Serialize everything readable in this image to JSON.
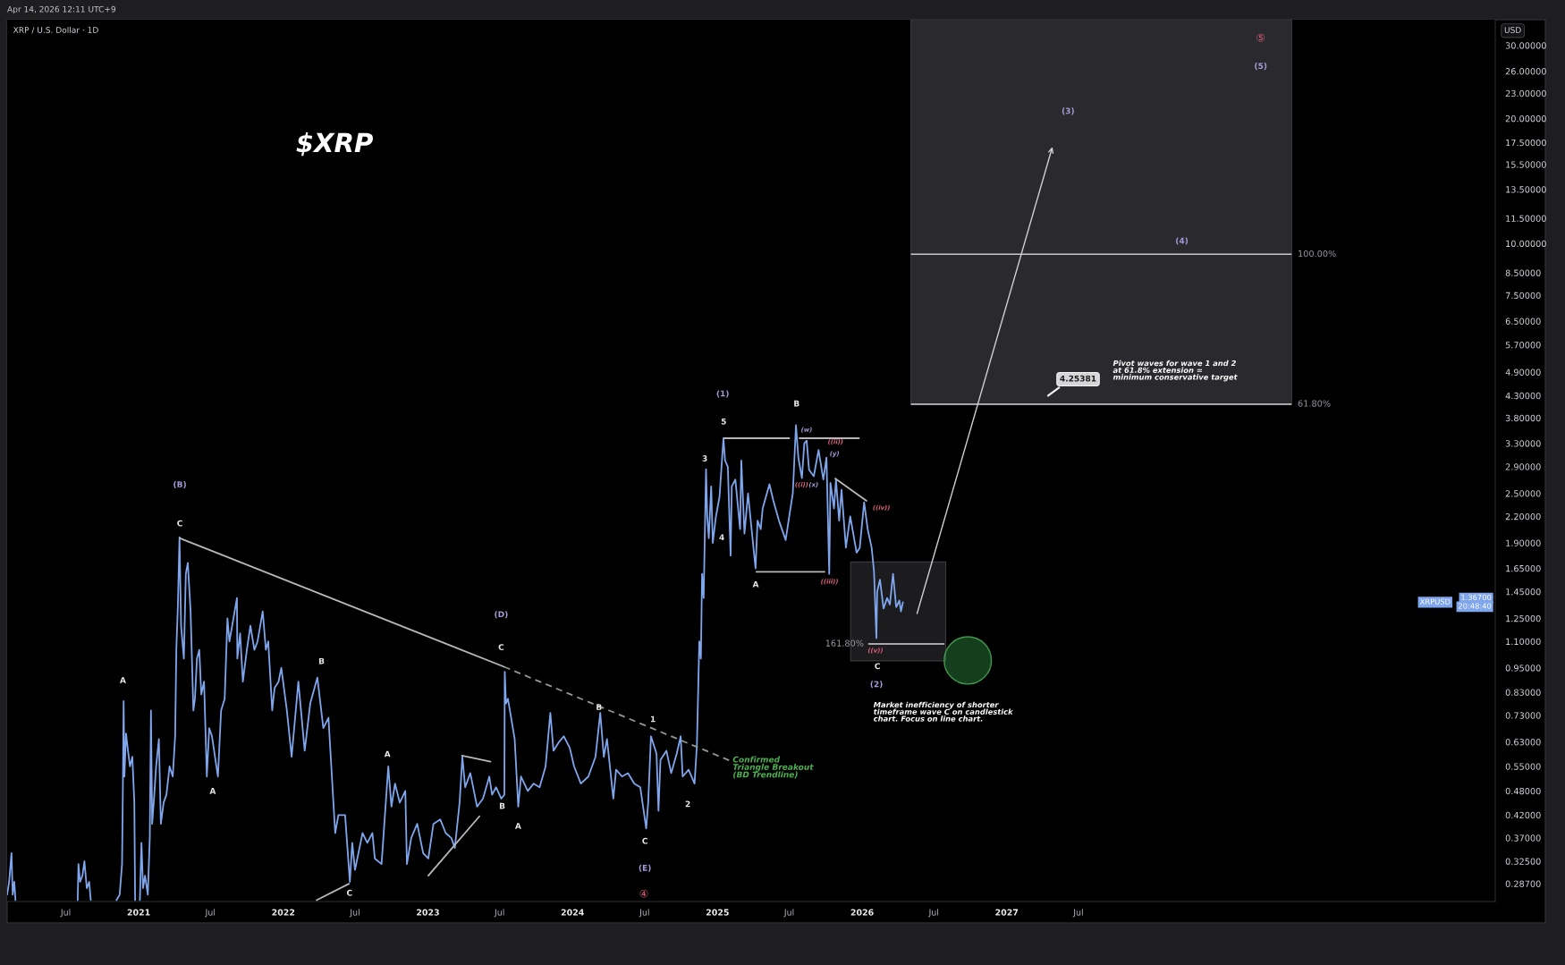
{
  "chart_data": {
    "type": "line",
    "title": "XRP / U.S. Dollar · 1D",
    "subtitle": "$XRP",
    "ylabel": "USD",
    "log": true,
    "xlim": [
      "2020-02-04",
      "2030-05-18"
    ],
    "ylim": [
      0.26,
      34.6
    ],
    "xticks": [
      {
        "value": "2020-07-01",
        "label": "Jul"
      },
      {
        "value": "2021-01-01",
        "label": "2021"
      },
      {
        "value": "2021-07-01",
        "label": "Jul"
      },
      {
        "value": "2022-01-01",
        "label": "2022"
      },
      {
        "value": "2022-07-01",
        "label": "Jul"
      },
      {
        "value": "2023-01-01",
        "label": "2023"
      },
      {
        "value": "2023-07-01",
        "label": "Jul"
      },
      {
        "value": "2024-01-01",
        "label": "2024"
      },
      {
        "value": "2024-07-01",
        "label": "Jul"
      },
      {
        "value": "2025-01-01",
        "label": "2025"
      },
      {
        "value": "2025-07-01",
        "label": "Jul"
      },
      {
        "value": "2026-01-01",
        "label": "2026"
      },
      {
        "value": "2026-07-01",
        "label": "Jul"
      },
      {
        "value": "2027-01-01",
        "label": "2027"
      },
      {
        "value": "2027-07-01",
        "label": "Jul"
      }
    ],
    "yticks": [
      {
        "value": 30,
        "label": "30.00000"
      },
      {
        "value": 26,
        "label": "26.00000"
      },
      {
        "value": 23,
        "label": "23.00000"
      },
      {
        "value": 20,
        "label": "20.00000"
      },
      {
        "value": 17.5,
        "label": "17.50000"
      },
      {
        "value": 15.5,
        "label": "15.50000"
      },
      {
        "value": 13.5,
        "label": "13.50000"
      },
      {
        "value": 11.5,
        "label": "11.50000"
      },
      {
        "value": 10,
        "label": "10.00000"
      },
      {
        "value": 8.5,
        "label": "8.50000"
      },
      {
        "value": 7.5,
        "label": "7.50000"
      },
      {
        "value": 6.5,
        "label": "6.50000"
      },
      {
        "value": 5.7,
        "label": "5.70000"
      },
      {
        "value": 4.9,
        "label": "4.90000"
      },
      {
        "value": 4.3,
        "label": "4.30000"
      },
      {
        "value": 3.8,
        "label": "3.80000"
      },
      {
        "value": 3.3,
        "label": "3.30000"
      },
      {
        "value": 2.9,
        "label": "2.90000"
      },
      {
        "value": 2.5,
        "label": "2.50000"
      },
      {
        "value": 2.2,
        "label": "2.20000"
      },
      {
        "value": 1.9,
        "label": "1.90000"
      },
      {
        "value": 1.65,
        "label": "1.65000"
      },
      {
        "value": 1.45,
        "label": "1.45000"
      },
      {
        "value": 1.25,
        "label": "1.25000"
      },
      {
        "value": 1.1,
        "label": "1.10000"
      },
      {
        "value": 0.95,
        "label": "0.95000"
      },
      {
        "value": 0.83,
        "label": "0.83000"
      },
      {
        "value": 0.73,
        "label": "0.73000"
      },
      {
        "value": 0.63,
        "label": "0.63000"
      },
      {
        "value": 0.55,
        "label": "0.55000"
      },
      {
        "value": 0.48,
        "label": "0.48000"
      },
      {
        "value": 0.42,
        "label": "0.42000"
      },
      {
        "value": 0.37,
        "label": "0.37000"
      },
      {
        "value": 0.325,
        "label": "0.32500"
      },
      {
        "value": 0.287,
        "label": "0.28700"
      }
    ],
    "series": [
      {
        "name": "XRPUSD",
        "color": "#7fa6ec",
        "x": [
          "2020-02-04",
          "2020-02-09",
          "2020-02-15",
          "2020-02-18",
          "2020-02-22",
          "2020-02-25",
          "2020-02-28",
          "2020-07-31",
          "2020-08-02",
          "2020-08-06",
          "2020-08-12",
          "2020-08-17",
          "2020-08-23",
          "2020-08-29",
          "2020-09-02",
          "2020-09-06",
          "2020-11-06",
          "2020-11-14",
          "2020-11-20",
          "2020-11-22",
          "2020-11-24",
          "2020-11-26",
          "2020-11-30",
          "2020-12-05",
          "2020-12-10",
          "2020-12-16",
          "2020-12-21",
          "2020-12-23",
          "2020-12-26",
          "2021-01-04",
          "2021-01-08",
          "2021-01-12",
          "2021-01-17",
          "2021-01-24",
          "2021-01-29",
          "2021-02-01",
          "2021-02-04",
          "2021-02-08",
          "2021-02-14",
          "2021-02-21",
          "2021-02-26",
          "2021-03-05",
          "2021-03-12",
          "2021-03-20",
          "2021-03-28",
          "2021-04-03",
          "2021-04-06",
          "2021-04-10",
          "2021-04-14",
          "2021-04-18",
          "2021-04-25",
          "2021-04-30",
          "2021-05-05",
          "2021-05-12",
          "2021-05-19",
          "2021-05-23",
          "2021-05-28",
          "2021-06-03",
          "2021-06-08",
          "2021-06-15",
          "2021-06-22",
          "2021-06-28",
          "2021-07-05",
          "2021-07-20",
          "2021-07-28",
          "2021-08-06",
          "2021-08-13",
          "2021-08-18",
          "2021-08-25",
          "2021-09-06",
          "2021-09-07",
          "2021-09-14",
          "2021-09-21",
          "2021-10-01",
          "2021-10-10",
          "2021-10-20",
          "2021-10-28",
          "2021-11-10",
          "2021-11-18",
          "2021-11-24",
          "2021-12-04",
          "2021-12-10",
          "2021-12-20",
          "2021-12-27",
          "2022-01-10",
          "2022-01-22",
          "2022-02-08",
          "2022-02-24",
          "2022-03-10",
          "2022-03-28",
          "2022-04-12",
          "2022-04-25",
          "2022-05-12",
          "2022-05-20",
          "2022-06-06",
          "2022-06-18",
          "2022-06-24",
          "2022-07-01",
          "2022-07-20",
          "2022-08-01",
          "2022-08-14",
          "2022-08-20",
          "2022-09-06",
          "2022-09-23",
          "2022-10-01",
          "2022-10-10",
          "2022-10-22",
          "2022-11-05",
          "2022-11-09",
          "2022-11-20",
          "2022-12-05",
          "2022-12-20",
          "2023-01-02",
          "2023-01-15",
          "2023-02-01",
          "2023-02-15",
          "2023-03-01",
          "2023-03-10",
          "2023-03-22",
          "2023-03-29",
          "2023-04-05",
          "2023-04-18",
          "2023-05-05",
          "2023-05-20",
          "2023-06-05",
          "2023-06-12",
          "2023-06-22",
          "2023-07-05",
          "2023-07-13",
          "2023-07-14",
          "2023-07-17",
          "2023-07-22",
          "2023-08-08",
          "2023-08-17",
          "2023-08-24",
          "2023-09-10",
          "2023-09-25",
          "2023-10-10",
          "2023-10-25",
          "2023-11-06",
          "2023-11-14",
          "2023-11-28",
          "2023-12-10",
          "2023-12-25",
          "2024-01-05",
          "2024-01-22",
          "2024-02-10",
          "2024-02-28",
          "2024-03-11",
          "2024-03-20",
          "2024-03-28",
          "2024-04-13",
          "2024-04-20",
          "2024-05-05",
          "2024-05-20",
          "2024-06-05",
          "2024-06-20",
          "2024-07-05",
          "2024-07-10",
          "2024-07-17",
          "2024-07-31",
          "2024-08-05",
          "2024-08-10",
          "2024-08-25",
          "2024-09-06",
          "2024-09-20",
          "2024-09-30",
          "2024-10-05",
          "2024-10-20",
          "2024-11-04",
          "2024-11-10",
          "2024-11-16",
          "2024-11-20",
          "2024-11-23",
          "2024-11-27",
          "2024-12-03",
          "2024-12-06",
          "2024-12-10",
          "2024-12-16",
          "2024-12-20",
          "2024-12-28",
          "2025-01-06",
          "2025-01-16",
          "2025-01-20",
          "2025-01-27",
          "2025-02-03",
          "2025-02-06",
          "2025-02-15",
          "2025-02-27",
          "2025-03-02",
          "2025-03-10",
          "2025-03-19",
          "2025-03-28",
          "2025-04-07",
          "2025-04-12",
          "2025-04-20",
          "2025-04-25",
          "2025-05-12",
          "2025-05-22",
          "2025-06-05",
          "2025-06-22",
          "2025-07-01",
          "2025-07-10",
          "2025-07-18",
          "2025-07-24",
          "2025-08-02",
          "2025-08-08",
          "2025-08-14",
          "2025-08-20",
          "2025-09-01",
          "2025-09-13",
          "2025-09-25",
          "2025-10-03",
          "2025-10-10",
          "2025-10-13",
          "2025-10-22",
          "2025-10-27",
          "2025-11-04",
          "2025-11-10",
          "2025-11-21",
          "2025-12-02",
          "2025-12-18",
          "2025-12-26",
          "2026-01-06",
          "2026-01-15",
          "2026-01-25",
          "2026-01-31",
          "2026-02-06",
          "2026-02-08",
          "2026-02-15",
          "2026-02-24",
          "2026-03-05",
          "2026-03-12",
          "2026-03-20",
          "2026-03-28",
          "2026-04-05",
          "2026-04-09",
          "2026-04-14"
        ],
        "values": [
          0.27,
          0.29,
          0.34,
          0.27,
          0.29,
          0.262,
          null,
          0.262,
          0.32,
          0.29,
          0.3,
          0.325,
          0.28,
          0.29,
          0.262,
          null,
          0.262,
          0.27,
          0.32,
          0.48,
          0.79,
          0.52,
          0.66,
          0.6,
          0.55,
          0.58,
          0.45,
          0.262,
          null,
          0.262,
          0.36,
          0.28,
          0.3,
          0.27,
          0.37,
          0.75,
          0.4,
          0.45,
          0.55,
          0.64,
          0.4,
          0.45,
          0.47,
          0.55,
          0.52,
          0.65,
          1.05,
          1.35,
          1.96,
          1.2,
          1.0,
          1.6,
          1.7,
          1.3,
          0.75,
          0.8,
          1.0,
          1.05,
          0.82,
          0.88,
          0.52,
          0.68,
          0.65,
          0.52,
          0.75,
          0.8,
          1.25,
          1.1,
          1.2,
          1.4,
          1.0,
          1.15,
          0.88,
          1.05,
          1.2,
          1.05,
          1.1,
          1.3,
          1.05,
          1.1,
          0.75,
          0.85,
          0.88,
          0.95,
          0.75,
          0.58,
          0.88,
          0.6,
          0.78,
          0.9,
          0.68,
          0.72,
          0.38,
          0.42,
          0.42,
          0.29,
          0.36,
          0.31,
          0.38,
          0.36,
          0.38,
          0.33,
          0.32,
          0.55,
          0.44,
          0.5,
          0.45,
          0.48,
          0.32,
          0.37,
          0.4,
          0.34,
          0.33,
          0.4,
          0.41,
          0.38,
          0.37,
          0.35,
          0.45,
          0.58,
          0.49,
          0.53,
          0.44,
          0.46,
          0.52,
          0.47,
          0.49,
          0.46,
          0.47,
          0.93,
          0.78,
          0.8,
          0.64,
          0.44,
          0.52,
          0.48,
          0.5,
          0.49,
          0.55,
          0.74,
          0.6,
          0.63,
          0.65,
          0.61,
          0.55,
          0.5,
          0.52,
          0.58,
          0.74,
          0.58,
          0.64,
          0.46,
          0.54,
          0.52,
          0.53,
          0.5,
          0.49,
          0.39,
          0.45,
          0.65,
          0.59,
          0.43,
          0.57,
          0.6,
          0.53,
          0.59,
          0.65,
          0.52,
          0.54,
          0.5,
          0.62,
          1.1,
          1.0,
          1.6,
          1.4,
          2.86,
          2.2,
          1.95,
          2.6,
          1.9,
          2.2,
          2.45,
          3.4,
          3.0,
          2.9,
          1.77,
          2.6,
          2.7,
          2.05,
          3.0,
          2.0,
          2.5,
          2.05,
          1.65,
          2.15,
          2.05,
          2.3,
          2.63,
          2.4,
          2.15,
          1.93,
          2.2,
          2.5,
          3.65,
          3.05,
          2.72,
          3.3,
          3.35,
          2.85,
          2.75,
          3.18,
          2.7,
          3.05,
          1.6,
          2.65,
          2.3,
          2.7,
          2.15,
          2.55,
          1.85,
          2.2,
          1.8,
          1.85,
          2.38,
          2.05,
          1.85,
          1.62,
          1.12,
          1.45,
          1.55,
          1.32,
          1.4,
          1.35,
          1.6,
          1.33,
          1.38,
          1.3,
          1.367
        ]
      },
      {
        "color": "#b8b8bc",
        "x": [
          "2021-04-15",
          "2023-07-12"
        ],
        "values": [
          1.95,
          0.956
        ]
      },
      {
        "color": "#8f9a8f",
        "line_style": "dashed",
        "x": [
          "2023-07-12",
          "2025-01-30"
        ],
        "values": [
          0.956,
          0.569
        ]
      },
      {
        "color": "#b8b8bc",
        "x": [
          "2022-03-26",
          "2022-06-16"
        ],
        "values": [
          0.262,
          0.287
        ]
      },
      {
        "color": "#b8b8bc",
        "x": [
          "2023-01-02",
          "2023-05-11"
        ],
        "values": [
          0.3,
          0.417
        ]
      },
      {
        "color": "#b8b8bc",
        "x": [
          "2023-03-28",
          "2023-06-08"
        ],
        "values": [
          0.584,
          0.565
        ]
      },
      {
        "color": "#b8b8bc",
        "x": [
          "2025-01-18",
          "2025-07-01"
        ],
        "values": [
          3.395,
          3.395
        ]
      },
      {
        "color": "#b8b8bc",
        "x": [
          "2025-07-27",
          "2025-12-24"
        ],
        "values": [
          3.395,
          3.395
        ]
      },
      {
        "color": "#b8b8bc",
        "x": [
          "2025-04-09",
          "2025-09-28"
        ],
        "values": [
          1.618,
          1.618
        ]
      },
      {
        "color": "#b8b8bc",
        "x": [
          "2025-10-25",
          "2026-01-12"
        ],
        "values": [
          2.715,
          2.4
        ]
      },
      {
        "color": "#a8a8ac",
        "x": [
          "2026-01-18",
          "2026-07-26"
        ],
        "values": [
          1.085,
          1.085
        ]
      }
    ],
    "bands": [
      {
        "axis": "x",
        "from": "2026-05-04",
        "to": "2028-12-20",
        "color": "#2a2a2e"
      },
      {
        "axis": "x",
        "from": "2025-12-03",
        "to": "2026-07-31",
        "color": "#1c1c1f"
      }
    ],
    "ref_lines": [
      {
        "axis": "y",
        "value": 9.42,
        "color": "#c9c9cc"
      },
      {
        "axis": "y",
        "value": 4.1,
        "color": "#d2d2d5"
      }
    ],
    "annotations": [
      "Apr 14, 2026 12:11 UTC+9",
      "Pivot waves for wave 1 and 2\nat 61.8% extension =\nminimum conservative target",
      "Market inefficiency of shorter\ntimeframe wave C on candlestick\nchart. Focus on line chart.",
      "1.36700",
      "20:48:40",
      "Confirmed\nTriangle Breakout\n(BD Trendline)",
      "4.25381",
      "100.00%",
      "61.80%",
      {
        "text": "161.80%",
        "x": "2026-01-18",
        "y": 1.085
      },
      "C",
      "A",
      "A",
      "B",
      "C",
      "A",
      "B",
      "C",
      "A",
      "B",
      "1",
      "2",
      "C",
      "5",
      "3",
      "4",
      "A",
      "B",
      "C",
      "(B)",
      "(D)",
      "(E)",
      "(1)",
      "(2)",
      "(3)",
      "(4)",
      "(5)",
      "(w)",
      "(y)",
      "(x)",
      "((ii))",
      "((i))",
      "((iii))",
      "((iv))",
      "((v))",
      "④",
      "⑤"
    ]
  }
}
